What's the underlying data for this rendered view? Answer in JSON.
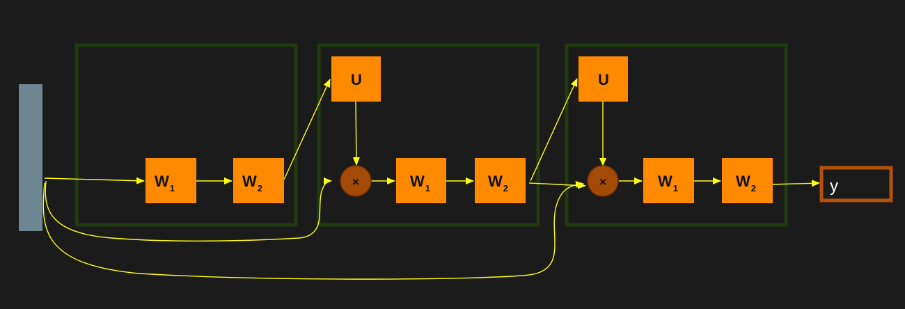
{
  "colors": {
    "background": "#1b1b1b",
    "block_border": "#213b0e",
    "node_fill": "#ff8a00",
    "multiply_fill": "#a34a07",
    "multiply_stroke": "#6b2f04",
    "arrow": "#ffff1a",
    "input_bar": "#6e8592",
    "output_border": "#b4510a"
  },
  "blocks": [
    {
      "w1": {
        "main": "W",
        "sub": "1"
      },
      "w2": {
        "main": "W",
        "sub": "2"
      }
    },
    {
      "u": "U",
      "mult": "×",
      "w1": {
        "main": "W",
        "sub": "1"
      },
      "w2": {
        "main": "W",
        "sub": "2"
      }
    },
    {
      "u": "U",
      "mult": "×",
      "w1": {
        "main": "W",
        "sub": "1"
      },
      "w2": {
        "main": "W",
        "sub": "2"
      }
    }
  ],
  "output": {
    "label": "y"
  }
}
